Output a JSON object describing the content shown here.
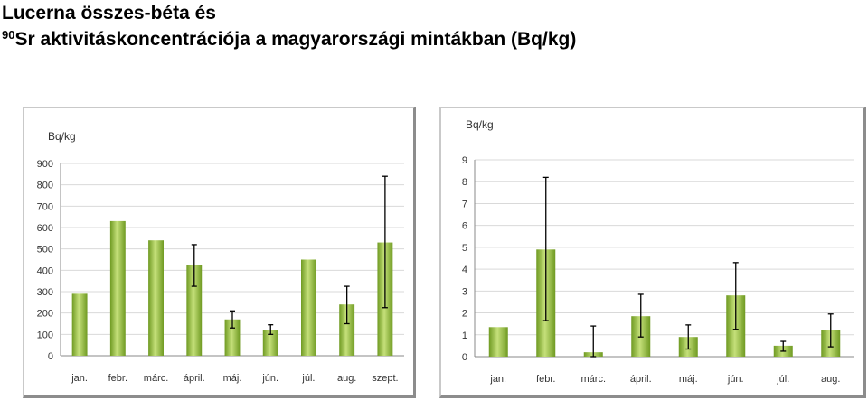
{
  "title": {
    "line1": "Lucerna összes-béta és",
    "superscript": "90",
    "line2": "Sr aktivitáskoncentrációja a magyarországi mintákban (Bq/kg)"
  },
  "colors": {
    "bar_light": "#c5e07a",
    "bar_dark": "#6f9a22",
    "gridline": "#d9d9d9",
    "axis": "#888888",
    "error_bar": "#000000"
  },
  "chart_data": [
    {
      "type": "bar",
      "title": "",
      "xlabel": "",
      "ylabel": "Bq/kg",
      "ylim": [
        0,
        900
      ],
      "yticks": [
        0,
        100,
        200,
        300,
        400,
        500,
        600,
        700,
        800,
        900
      ],
      "grid": true,
      "categories": [
        "jan.",
        "febr.",
        "márc.",
        "ápril.",
        "máj.",
        "jún.",
        "júl.",
        "aug.",
        "szept."
      ],
      "values": [
        290,
        630,
        540,
        425,
        170,
        120,
        450,
        240,
        530
      ],
      "errors": [
        null,
        null,
        null,
        [
          325,
          520
        ],
        [
          130,
          210
        ],
        [
          100,
          145
        ],
        null,
        [
          150,
          325
        ],
        [
          225,
          840
        ]
      ]
    },
    {
      "type": "bar",
      "title": "",
      "xlabel": "",
      "ylabel": "Bq/kg",
      "ylim": [
        0,
        9
      ],
      "yticks": [
        0,
        1,
        2,
        3,
        4,
        5,
        6,
        7,
        8,
        9
      ],
      "grid": true,
      "categories": [
        "jan.",
        "febr.",
        "márc.",
        "ápril.",
        "máj.",
        "jún.",
        "júl.",
        "aug."
      ],
      "values": [
        1.35,
        4.9,
        0.2,
        1.85,
        0.9,
        2.8,
        0.5,
        1.2
      ],
      "errors": [
        null,
        [
          1.65,
          8.2
        ],
        [
          0.0,
          1.4
        ],
        [
          0.9,
          2.85
        ],
        [
          0.35,
          1.45
        ],
        [
          1.25,
          4.3
        ],
        [
          0.25,
          0.7
        ],
        [
          0.45,
          1.95
        ]
      ]
    }
  ]
}
